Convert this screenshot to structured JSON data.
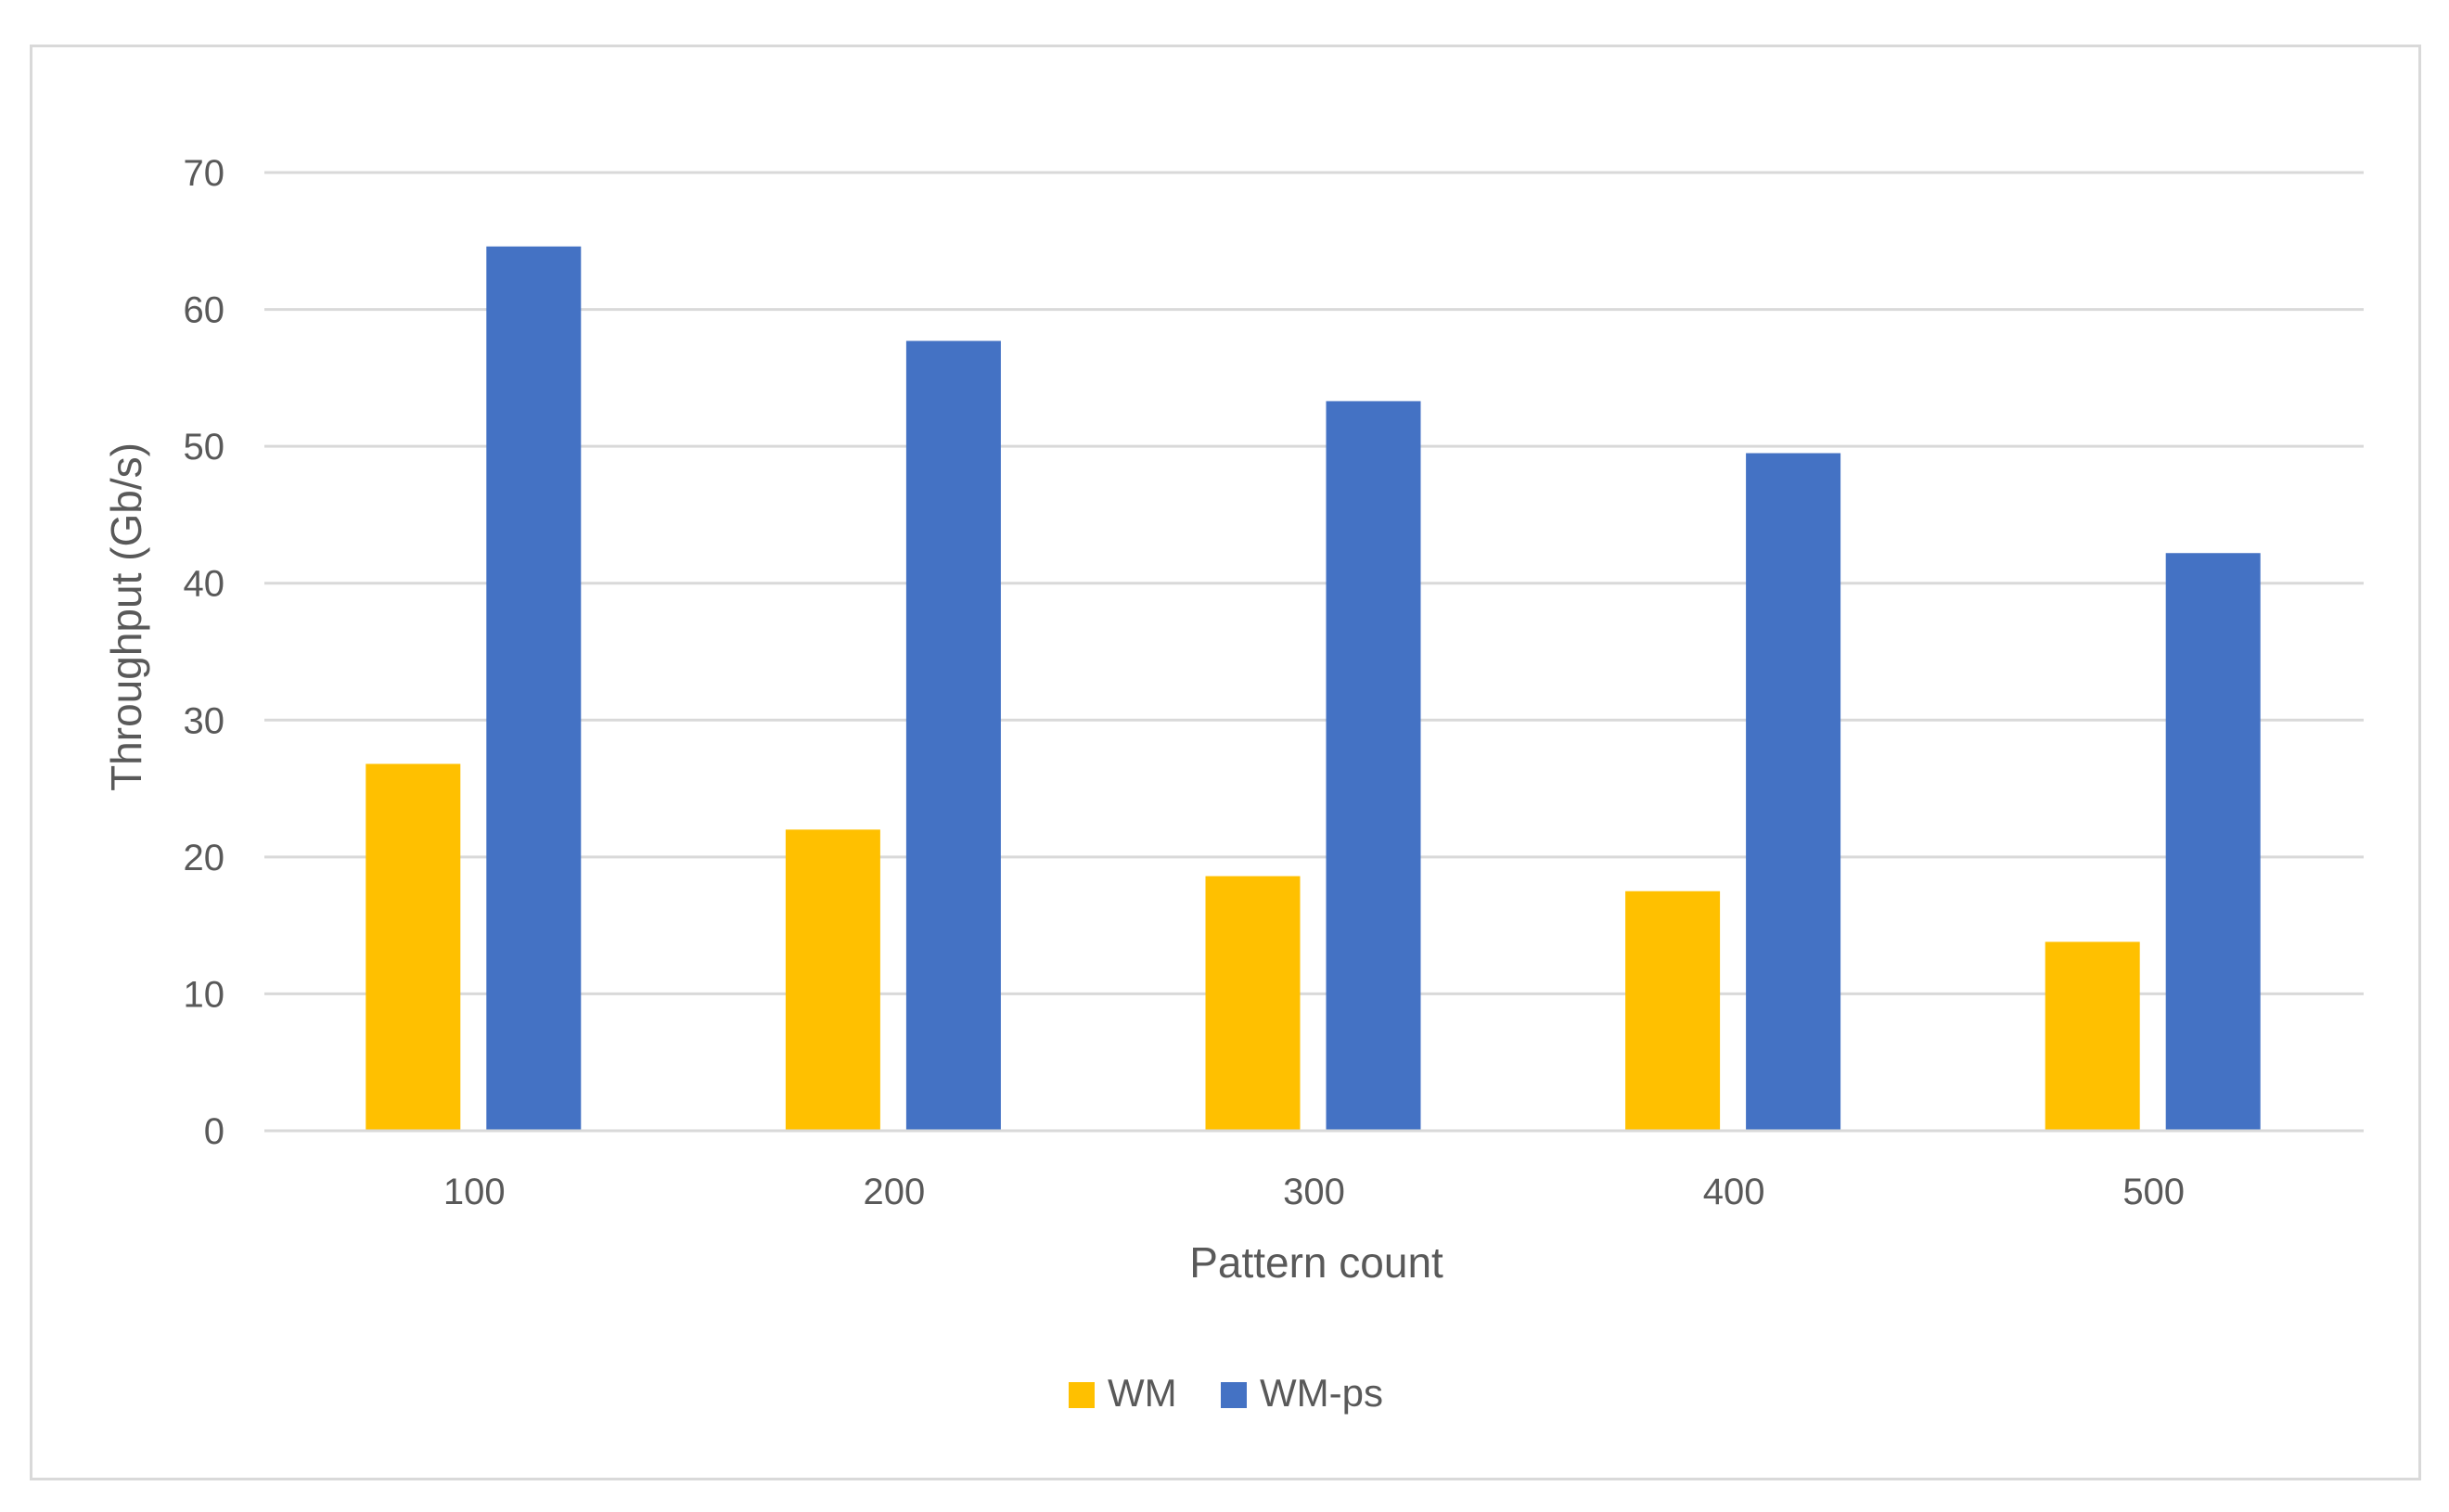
{
  "chart_data": {
    "type": "bar",
    "title": "",
    "xlabel": "Pattern count",
    "ylabel": "Throughput (Gb/s)",
    "categories": [
      "100",
      "200",
      "300",
      "400",
      "500"
    ],
    "series": [
      {
        "name": "WM",
        "color": "#FFC000",
        "values": [
          26.8,
          22.0,
          18.6,
          17.5,
          13.8
        ]
      },
      {
        "name": "WM-ps",
        "color": "#4472C4",
        "values": [
          64.6,
          57.7,
          53.3,
          49.5,
          42.2
        ]
      }
    ],
    "ylim": [
      0,
      70
    ],
    "yticks": [
      "0",
      "10",
      "20",
      "30",
      "40",
      "50",
      "60",
      "70"
    ],
    "grid": true,
    "legend": "bottom-center",
    "gridline_color": "#d9d9d9",
    "axis_color": "#d9d9d9",
    "text_color": "#595959"
  }
}
